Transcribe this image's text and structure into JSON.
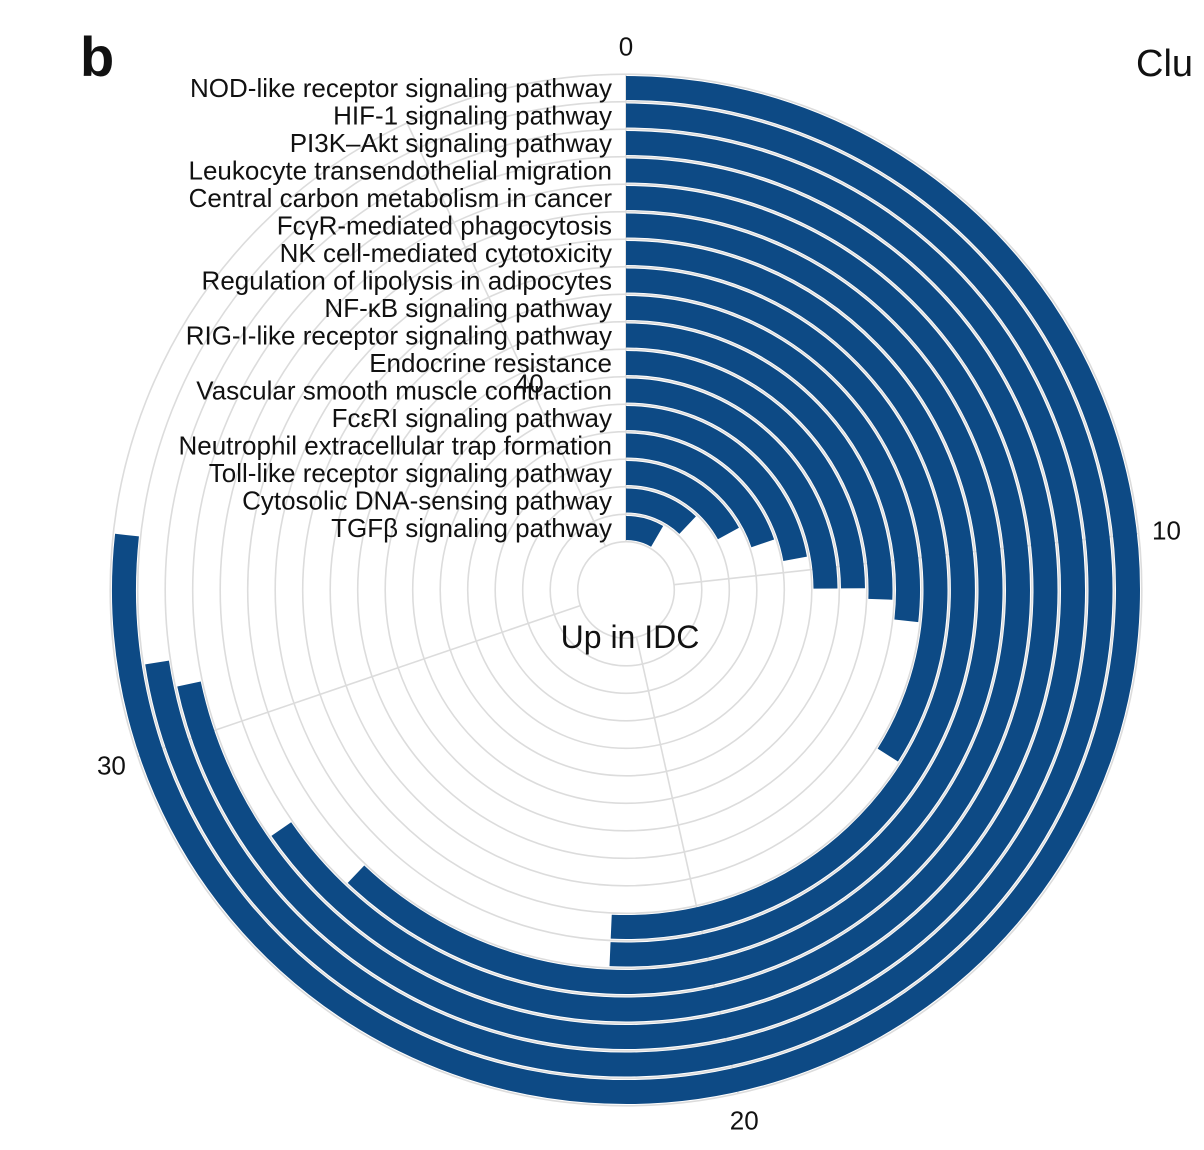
{
  "panel_label": "b",
  "corner_text": "Clu",
  "chart_data": {
    "type": "circular_bar",
    "center_label": "Up in IDC",
    "angular_axis": {
      "range": [
        0,
        43
      ],
      "ticks": [
        0,
        10,
        20,
        30,
        40
      ],
      "direction": "clockwise",
      "start": "top"
    },
    "grid": true,
    "bar_color": "#0d4a85",
    "categories": [
      "NOD-like receptor signaling pathway",
      "HIF-1 signaling pathway",
      "PI3K–Akt signaling pathway",
      "Leukocyte transendothelial migration",
      "Central carbon metabolism in cancer",
      "FcγR-mediated phagocytosis",
      "NK cell-mediated cytotoxicity",
      "Regulation of lipolysis in adipocytes",
      "NF-κB signaling pathway",
      "RIG-I-like receptor signaling pathway",
      "Endocrine resistance",
      "Vascular smooth muscle contraction",
      "FcεRI signaling pathway",
      "Neutrophil extracellular trap formation",
      "Toll-like receptor signaling pathway",
      "Cytosolic DNA-sensing pathway",
      "TGFβ signaling pathway"
    ],
    "values": [
      33.0,
      31.2,
      30.8,
      28.1,
      26.7,
      21.8,
      21.8,
      14.6,
      11.5,
      11.0,
      10.7,
      10.7,
      9.5,
      8.5,
      7.3,
      5.2,
      3.6
    ]
  }
}
